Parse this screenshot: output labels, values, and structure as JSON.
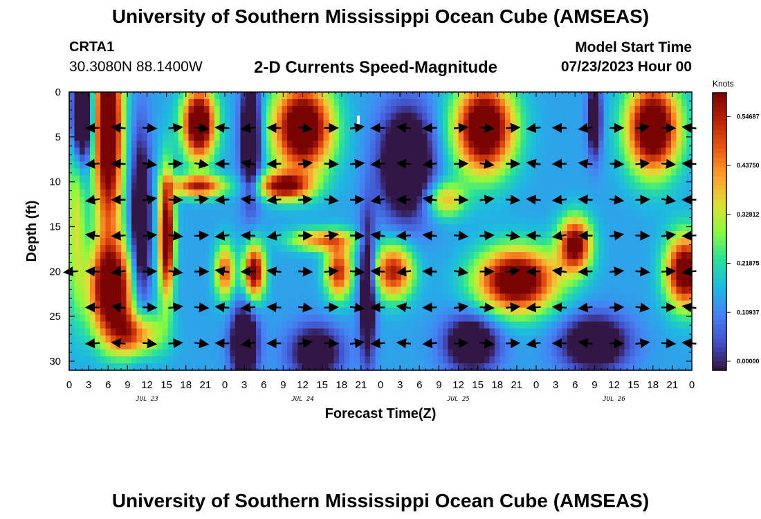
{
  "header": {
    "title": "University of Southern Mississippi Ocean Cube (AMSEAS)",
    "station": "CRTA1",
    "coords": "30.3080N  88.1400W",
    "subtitle": "2-D Currents Speed-Magnitude",
    "start_label": "Model Start Time",
    "start_value": "07/23/2023 Hour 00"
  },
  "footer": {
    "title": "University of Southern Mississippi Ocean Cube (AMSEAS)"
  },
  "chart_data": {
    "type": "heatmap",
    "title": "2-D Currents Speed-Magnitude",
    "xlabel": "Forecast Time(Z)",
    "ylabel": "Depth (ft)",
    "x_range_hours": [
      0,
      96
    ],
    "ylim": [
      0,
      31
    ],
    "x_tick_labels": [
      "0",
      "3",
      "6",
      "9",
      "12",
      "15",
      "18",
      "21",
      "0",
      "3",
      "6",
      "9",
      "12",
      "15",
      "18",
      "21",
      "0",
      "3",
      "6",
      "9",
      "12",
      "15",
      "18",
      "21",
      "0",
      "3",
      "6",
      "9",
      "12",
      "15",
      "18",
      "21",
      "0"
    ],
    "y_ticks": [
      0,
      5,
      10,
      15,
      20,
      25,
      30
    ],
    "date_labels": [
      {
        "text": "JUL 23",
        "hour": 12
      },
      {
        "text": "JUL 24",
        "hour": 36
      },
      {
        "text": "JUL 25",
        "hour": 60
      },
      {
        "text": "JUL 26",
        "hour": 84
      }
    ],
    "colorbar": {
      "unit": "Knots",
      "min": 0,
      "max": 0.62,
      "tick_values": [
        0.0,
        0.10937,
        0.21875,
        0.32812,
        0.4375,
        0.54687
      ],
      "tick_labels": [
        "0.00000",
        "0.10937",
        "0.21875",
        "0.32812",
        "0.43750",
        "0.54687"
      ]
    },
    "vector_depths_ft": [
      4,
      8,
      12,
      16,
      20,
      24,
      28
    ],
    "vector_interval_hours": 4,
    "speed_features": [
      {
        "t": 6,
        "d": 4,
        "v": 0.6,
        "st": 2.2,
        "sd": 12
      },
      {
        "t": 6.5,
        "d": 22,
        "v": 0.55,
        "st": 3.5,
        "sd": 5
      },
      {
        "t": 10,
        "d": 27,
        "v": 0.35,
        "st": 4,
        "sd": 2.5
      },
      {
        "t": 15,
        "d": 16,
        "v": 0.55,
        "st": 1.2,
        "sd": 7
      },
      {
        "t": 20,
        "d": 3.5,
        "v": 0.6,
        "st": 2.5,
        "sd": 4
      },
      {
        "t": 20,
        "d": 10.5,
        "v": 0.4,
        "st": 4,
        "sd": 1.2
      },
      {
        "t": 24,
        "d": 20,
        "v": 0.35,
        "st": 1.5,
        "sd": 3
      },
      {
        "t": 28.5,
        "d": 20,
        "v": 0.5,
        "st": 1.6,
        "sd": 3
      },
      {
        "t": 36,
        "d": 4,
        "v": 0.6,
        "st": 4.5,
        "sd": 5
      },
      {
        "t": 33,
        "d": 10.5,
        "v": 0.45,
        "st": 4,
        "sd": 1.5
      },
      {
        "t": 39,
        "d": 16.5,
        "v": 0.3,
        "st": 5,
        "sd": 1.2
      },
      {
        "t": 41.5,
        "d": 20,
        "v": 0.4,
        "st": 2,
        "sd": 3
      },
      {
        "t": 50,
        "d": 20,
        "v": 0.42,
        "st": 3,
        "sd": 3
      },
      {
        "t": 64,
        "d": 4,
        "v": 0.6,
        "st": 4.5,
        "sd": 5
      },
      {
        "t": 69,
        "d": 21,
        "v": 0.58,
        "st": 6,
        "sd": 3.5
      },
      {
        "t": 78,
        "d": 17,
        "v": 0.5,
        "st": 2.5,
        "sd": 3
      },
      {
        "t": 90,
        "d": 4,
        "v": 0.6,
        "st": 4,
        "sd": 5
      },
      {
        "t": 95,
        "d": 20,
        "v": 0.55,
        "st": 3,
        "sd": 4
      },
      {
        "t": 58,
        "d": 12,
        "v": 0.25,
        "st": 3,
        "sd": 2
      },
      {
        "t": 1,
        "d": 14,
        "v": 0.2,
        "st": 1.5,
        "sd": 10
      }
    ],
    "low_features": [
      {
        "t": 2,
        "d": 3,
        "v": 0.4,
        "st": 1.5,
        "sd": 5
      },
      {
        "t": 11,
        "d": 15,
        "v": 0.3,
        "st": 1.5,
        "sd": 10
      },
      {
        "t": 28,
        "d": 5,
        "v": 0.35,
        "st": 1.5,
        "sd": 7
      },
      {
        "t": 27,
        "d": 28,
        "v": 0.35,
        "st": 2,
        "sd": 4
      },
      {
        "t": 46,
        "d": 22,
        "v": 0.3,
        "st": 1.2,
        "sd": 8
      },
      {
        "t": 52,
        "d": 8,
        "v": 0.35,
        "st": 4,
        "sd": 6
      },
      {
        "t": 81,
        "d": 3,
        "v": 0.3,
        "st": 1,
        "sd": 4
      },
      {
        "t": 81,
        "d": 28,
        "v": 0.3,
        "st": 5,
        "sd": 3
      },
      {
        "t": 62,
        "d": 28,
        "v": 0.3,
        "st": 4,
        "sd": 3
      },
      {
        "t": 38,
        "d": 29,
        "v": 0.25,
        "st": 4,
        "sd": 3
      }
    ]
  }
}
